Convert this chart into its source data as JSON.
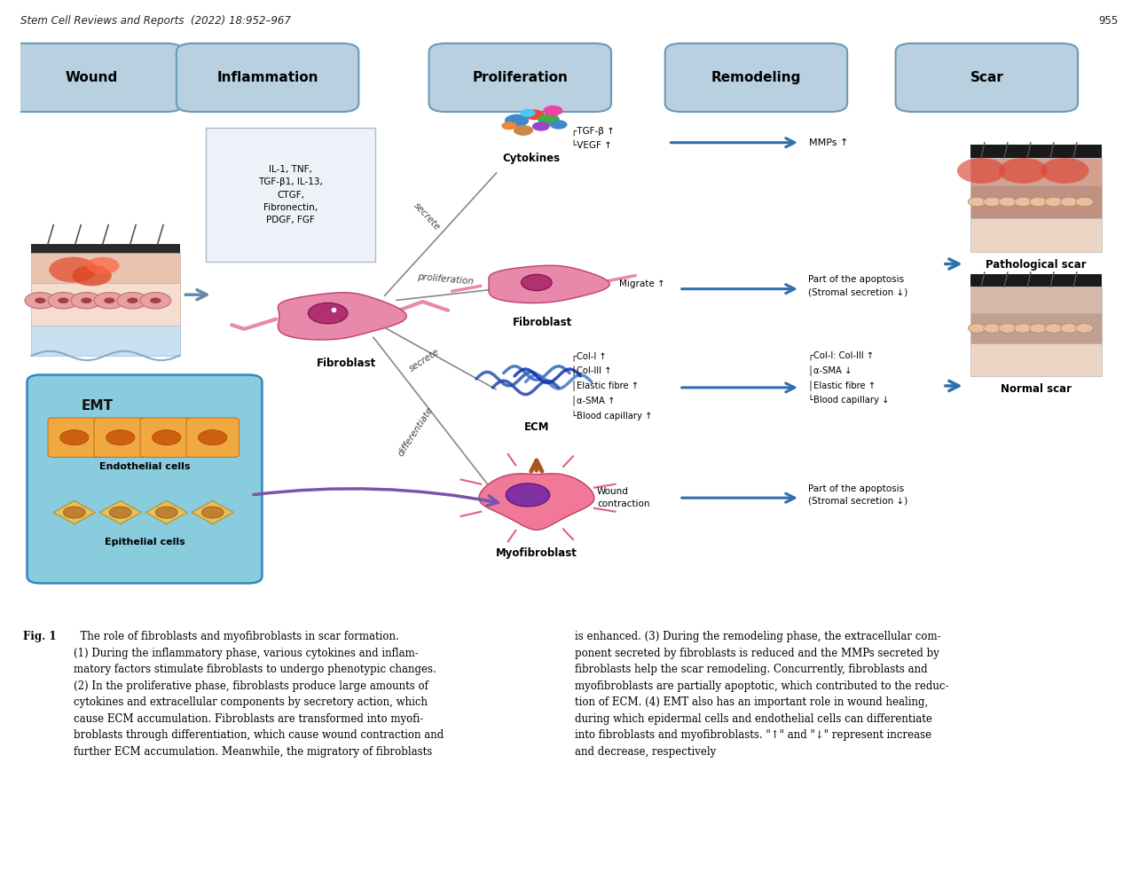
{
  "header_text": "Stem Cell Reviews and Reports  (2022) 18:952–967",
  "header_page": "955",
  "panel_bg": "#deedf5",
  "fig_bg": "#ffffff",
  "stage_labels": [
    "Wound",
    "Inflammation",
    "Proliferation",
    "Remodeling",
    "Scar"
  ],
  "stage_label_bg": "#b8d0e0",
  "stage_label_border": "#6a9ab8",
  "inflammation_text": "IL-1, TNF,\nTGF-β1, IL-13,\nCTGF,\nFibronectin,\nPDGF, FGF",
  "cytokines_text": "┌TGF-β ↑\n└VEGF ↑",
  "mmps_text": "MMPs ↑",
  "fibroblast_prolif_text": "Migrate ↑",
  "fibroblast_remodel_text": "Part of the apoptosis\n(Stromal secretion ↓)",
  "ecm_text": "┌Col-I ↑\n│Col-III ↑\n│Elastic fibre ↑\n│α-SMA ↑\n└Blood capillary ↑",
  "ecm_remodel_text": "┌Col-I: Col-III ↑\n│α-SMA ↓\n│Elastic fibre ↑\n└Blood capillary ↓",
  "myofib_text": "Wound\ncontraction",
  "myofib_remodel_text": "Part of the apoptosis\n(Stromal secretion ↓)",
  "secrete_label1": "secrete",
  "proliferation_label": "proliferation",
  "secrete_label2": "secrete",
  "differentiate_label": "differentiate",
  "emt_text": "EMT",
  "endothelial_text": "Endothelial cells",
  "epithelial_text": "Epithelial cells",
  "pathological_scar_text": "Pathological scar",
  "normal_scar_text": "Normal scar",
  "fibroblast_label": "Fibroblast",
  "fibroblast2_label": "Fibroblast",
  "cytokines_label": "Cytokines",
  "ecm_label": "ECM",
  "myofibroblast_label": "Myofibroblast",
  "caption_bold": "Fig. 1",
  "caption_left": "  The role of fibroblasts and myofibroblasts in scar formation.\n(1) During the inflammatory phase, various cytokines and inflam-\nmatory factors stimulate fibroblasts to undergo phenotypic changes.\n(2) In the proliferative phase, fibroblasts produce large amounts of\ncytokines and extracellular components by secretory action, which\ncause ECM accumulation. Fibroblasts are transformed into myofi-\nbroblasts through differentiation, which cause wound contraction and\nfurther ECM accumulation. Meanwhile, the migratory of fibroblasts",
  "caption_right": "is enhanced. (3) During the remodeling phase, the extracellular com-\nponent secreted by fibroblasts is reduced and the MMPs secreted by\nfibroblasts help the scar remodeling. Concurrently, fibroblasts and\nmyofibroblasts are partially apoptotic, which contributed to the reduc-\ntion of ECM. (4) EMT also has an important role in wound healing,\nduring which epidermal cells and endothelial cells can differentiate\ninto fibroblasts and myofibroblasts. \"↑\" and \"↓\" represent increase\nand decrease, respectively",
  "arrow_blue": "#2e6fad",
  "arrow_purple": "#7755aa",
  "wound_arrow_color": "#6688aa"
}
